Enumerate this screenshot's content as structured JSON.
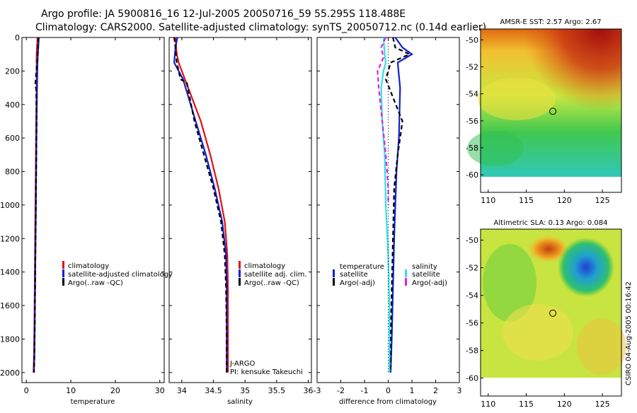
{
  "title": {
    "line1": "Argo profile: JA 5900816_16 12-Jul-2005 20050716_59 55.295S 118.488E",
    "line2": "Climatology: CARS2000. Satellite-adjusted climatology: synTS_20050712.nc (0.14d earlier)"
  },
  "colors": {
    "clim": "#e01010",
    "sat": "#1020d0",
    "argo": "#000000",
    "cyan": "#30e0e8",
    "magenta": "#e020e0"
  },
  "chart_data": [
    {
      "type": "line",
      "name": "temperature-panel",
      "xlabel": "temperature",
      "ylabel": "",
      "xlim": [
        -1,
        31
      ],
      "ylim": [
        2060,
        0
      ],
      "xticks": [
        0,
        10,
        20,
        30
      ],
      "yticks": [
        0,
        200,
        400,
        600,
        800,
        1000,
        1200,
        1400,
        1600,
        1800,
        2000
      ],
      "series": [
        {
          "name": "climatology",
          "color": "clim",
          "dash": "",
          "x": [
            2.5,
            2.3,
            2.3,
            2.3,
            2.2,
            2.1,
            2.0,
            1.9,
            1.8,
            1.7,
            1.6
          ],
          "y": [
            0,
            100,
            150,
            300,
            500,
            800,
            1100,
            1400,
            1700,
            1900,
            2000
          ]
        },
        {
          "name": "satellite-adjusted climatology",
          "color": "sat",
          "dash": "",
          "x": [
            2.8,
            2.6,
            2.5,
            2.4,
            2.3,
            2.2,
            2.1,
            2.0,
            1.9,
            1.8,
            1.7
          ],
          "y": [
            0,
            100,
            150,
            300,
            500,
            800,
            1100,
            1400,
            1700,
            1900,
            2000
          ]
        },
        {
          "name": "Argo(..raw -QC)",
          "color": "argo",
          "dash": "6,4",
          "x": [
            2.7,
            2.6,
            2.4,
            2.0,
            2.2,
            2.3,
            2.2,
            2.1,
            2.0,
            1.9,
            1.8,
            1.7
          ],
          "y": [
            0,
            60,
            150,
            280,
            310,
            500,
            800,
            1100,
            1400,
            1700,
            1900,
            2000
          ]
        }
      ],
      "legend": [
        "climatology",
        "satellite-adjusted climatology",
        "Argo(..raw -QC)"
      ]
    },
    {
      "type": "line",
      "name": "salinity-panel",
      "xlabel": "salinity",
      "ylabel": "",
      "xlim": [
        33.8,
        36.05
      ],
      "ylim": [
        2060,
        0
      ],
      "xticks": [
        34,
        34.5,
        35,
        35.5,
        36
      ],
      "series": [
        {
          "name": "climatology",
          "color": "clim",
          "dash": "",
          "x": [
            33.9,
            33.92,
            33.95,
            34.0,
            34.05,
            34.15,
            34.3,
            34.45,
            34.58,
            34.68,
            34.72,
            34.73,
            34.73,
            34.73
          ],
          "y": [
            0,
            100,
            150,
            200,
            250,
            350,
            500,
            700,
            900,
            1100,
            1300,
            1500,
            1800,
            2000
          ]
        },
        {
          "name": "satellite adj. clim.",
          "color": "sat",
          "dash": "",
          "x": [
            33.93,
            33.9,
            33.88,
            33.95,
            34.02,
            34.1,
            34.22,
            34.38,
            34.52,
            34.64,
            34.7,
            34.71,
            34.71,
            34.71
          ],
          "y": [
            0,
            60,
            150,
            200,
            250,
            350,
            500,
            700,
            900,
            1100,
            1300,
            1500,
            1800,
            2000
          ]
        },
        {
          "name": "Argo(..raw -QC)",
          "color": "argo",
          "dash": "6,4",
          "x": [
            33.88,
            33.9,
            33.92,
            33.98,
            34.08,
            34.12,
            34.2,
            34.35,
            34.5,
            34.62,
            34.68,
            34.7,
            34.71,
            34.71
          ],
          "y": [
            0,
            60,
            150,
            250,
            270,
            350,
            500,
            700,
            900,
            1100,
            1300,
            1500,
            1800,
            2000
          ]
        }
      ],
      "legend": [
        "climatology",
        "satellite adj. clim.",
        "Argo(..raw -QC)"
      ],
      "annotations": [
        "J-ARGO",
        "PI: kensuke Takeuchi"
      ]
    },
    {
      "type": "line",
      "name": "difference-panel",
      "xlabel": "difference from climatology",
      "ylabel": "",
      "xlim": [
        -3,
        3
      ],
      "ylim": [
        2060,
        0
      ],
      "xticks": [
        -3,
        -2,
        -1,
        0,
        1,
        2,
        3
      ],
      "series": [
        {
          "name": "temperature satellite",
          "color": "sat",
          "dash": "",
          "x": [
            0.3,
            0.6,
            1.0,
            0.4,
            0.5,
            0.45,
            0.35,
            0.3,
            0.25,
            0.2,
            0.15,
            0.1
          ],
          "y": [
            0,
            60,
            100,
            150,
            300,
            600,
            800,
            1000,
            1200,
            1500,
            1800,
            2000
          ]
        },
        {
          "name": "temperature Argo(-adj)",
          "color": "argo",
          "dash": "6,4",
          "x": [
            0.2,
            0.3,
            0.9,
            0.1,
            -0.1,
            0.6,
            0.4,
            0.25,
            0.2,
            0.15,
            0.1,
            0.1
          ],
          "y": [
            0,
            60,
            100,
            150,
            250,
            500,
            700,
            900,
            1200,
            1500,
            1800,
            2000
          ]
        },
        {
          "name": "salinity satellite",
          "color": "cyan",
          "dash": "",
          "x": [
            -0.2,
            -0.15,
            -0.1,
            -0.2,
            -0.3,
            -0.25,
            -0.15,
            -0.1,
            0.0,
            0.05,
            0.05
          ],
          "y": [
            0,
            100,
            150,
            200,
            300,
            500,
            700,
            1000,
            1300,
            1600,
            2000
          ]
        },
        {
          "name": "salinity Argo(-adj)",
          "color": "magenta",
          "dash": "6,4",
          "x": [
            -0.1,
            -0.3,
            -0.2,
            -0.45,
            -0.4,
            -0.25,
            -0.1,
            0.0,
            0.0
          ],
          "y": [
            0,
            60,
            120,
            200,
            300,
            500,
            700,
            900,
            1000
          ]
        },
        {
          "name": "zero line",
          "color": "argo",
          "dash": "1,3",
          "x": [
            0,
            0
          ],
          "y": [
            0,
            2000
          ]
        }
      ],
      "legend_left": {
        "header": "temperature",
        "items": [
          "satellite",
          "Argo(-adj)"
        ]
      },
      "legend_right": {
        "header": "salinity",
        "items": [
          "satellite",
          "Argo(-adj)"
        ]
      }
    },
    {
      "type": "heatmap",
      "name": "sst-map",
      "title": "AMSR-E SST: 2.57 Argo: 2.67",
      "xlim": [
        109,
        127.5
      ],
      "ylim": [
        -61.3,
        -49.2
      ],
      "xticks": [
        110,
        115,
        120,
        125
      ],
      "yticks": [
        -50,
        -52,
        -54,
        -56,
        -58,
        -60
      ],
      "marker": {
        "lon": 118.488,
        "lat": -55.295
      }
    },
    {
      "type": "heatmap",
      "name": "sla-map",
      "title": "Altimetric SLA: 0.13 Argo: 0.084",
      "xlim": [
        109,
        127.5
      ],
      "ylim": [
        -61.3,
        -49.2
      ],
      "xticks": [
        110,
        115,
        120,
        125
      ],
      "yticks": [
        -50,
        -52,
        -54,
        -56,
        -58,
        -60
      ],
      "marker": {
        "lon": 118.488,
        "lat": -55.295
      }
    }
  ],
  "credit": "CSIRO 04-Aug-2005 00:16:42"
}
